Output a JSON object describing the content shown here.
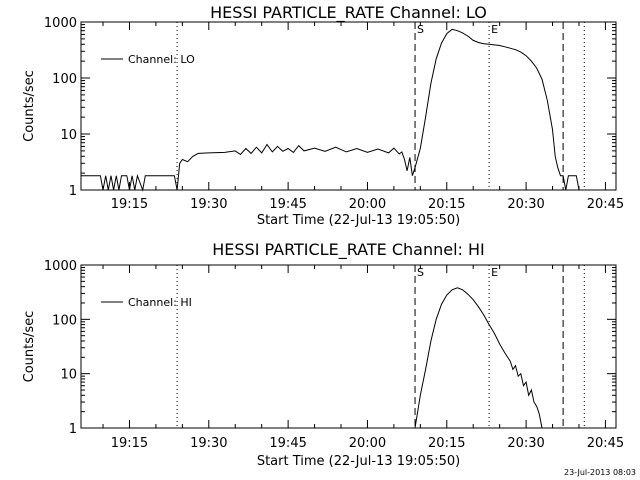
{
  "chart_data": [
    {
      "type": "line",
      "title": "HESSI PARTICLE_RATE Channel: LO",
      "xlabel": "Start Time (22-Jul-13 19:05:50)",
      "ylabel": "Counts/sec",
      "yscale": "log",
      "ylim": [
        1,
        1000
      ],
      "xlim": [
        "19:05:50",
        "20:47:00"
      ],
      "x_tick_labels": [
        "19:15",
        "19:30",
        "19:45",
        "20:00",
        "20:15",
        "20:30",
        "20:45"
      ],
      "y_tick_labels": [
        "1",
        "10",
        "100",
        "1000"
      ],
      "legend": {
        "position": "top-left",
        "entries": [
          "Channel: LO"
        ]
      },
      "markers": [
        {
          "label": "",
          "time": "19:24:00",
          "style": "dotted"
        },
        {
          "label": "S",
          "time": "20:09:00",
          "style": "dashed"
        },
        {
          "label": "E",
          "time": "20:23:00",
          "style": "dotted"
        },
        {
          "label": "",
          "time": "20:37:00",
          "style": "dashed"
        },
        {
          "label": "",
          "time": "20:41:00",
          "style": "dotted"
        }
      ],
      "series": [
        {
          "name": "Channel: LO",
          "points": [
            [
              "19:05:50",
              1.8
            ],
            [
              "19:08:00",
              1.8
            ],
            [
              "19:09:30",
              1.8
            ],
            [
              "19:10:00",
              1.0
            ],
            [
              "19:10:30",
              1.8
            ],
            [
              "19:11:00",
              1.0
            ],
            [
              "19:11:30",
              1.8
            ],
            [
              "19:12:00",
              1.0
            ],
            [
              "19:12:30",
              1.8
            ],
            [
              "19:13:00",
              1.0
            ],
            [
              "19:13:30",
              1.8
            ],
            [
              "19:14:30",
              1.8
            ],
            [
              "19:15:00",
              1.0
            ],
            [
              "19:15:30",
              1.8
            ],
            [
              "19:16:00",
              1.0
            ],
            [
              "19:16:30",
              1.8
            ],
            [
              "19:17:30",
              1.0
            ],
            [
              "19:18:00",
              1.8
            ],
            [
              "19:23:30",
              1.8
            ],
            [
              "19:24:00",
              1.0
            ],
            [
              "19:24:30",
              3.0
            ],
            [
              "19:25:00",
              3.5
            ],
            [
              "19:26:00",
              3.2
            ],
            [
              "19:27:00",
              4.0
            ],
            [
              "19:28:00",
              4.5
            ],
            [
              "19:30:00",
              4.6
            ],
            [
              "19:33:00",
              4.7
            ],
            [
              "19:35:00",
              5.0
            ],
            [
              "19:36:00",
              4.3
            ],
            [
              "19:37:00",
              5.5
            ],
            [
              "19:38:00",
              4.5
            ],
            [
              "19:39:00",
              5.8
            ],
            [
              "19:40:00",
              4.6
            ],
            [
              "19:41:00",
              6.5
            ],
            [
              "19:42:00",
              4.8
            ],
            [
              "19:43:00",
              6.0
            ],
            [
              "19:44:00",
              4.9
            ],
            [
              "19:45:00",
              5.5
            ],
            [
              "19:46:00",
              4.7
            ],
            [
              "19:47:00",
              6.2
            ],
            [
              "19:48:00",
              5.0
            ],
            [
              "19:50:00",
              5.6
            ],
            [
              "19:52:00",
              4.9
            ],
            [
              "19:54:00",
              5.8
            ],
            [
              "19:56:00",
              4.8
            ],
            [
              "19:58:00",
              5.5
            ],
            [
              "20:00:00",
              4.7
            ],
            [
              "20:02:00",
              5.4
            ],
            [
              "20:04:00",
              4.6
            ],
            [
              "20:05:00",
              5.6
            ],
            [
              "20:06:00",
              4.4
            ],
            [
              "20:06:30",
              4.8
            ],
            [
              "20:07:00",
              3.5
            ],
            [
              "20:07:30",
              2.2
            ],
            [
              "20:08:00",
              3.8
            ],
            [
              "20:08:30",
              1.8
            ],
            [
              "20:09:00",
              2.5
            ],
            [
              "20:10:00",
              5.5
            ],
            [
              "20:11:00",
              20
            ],
            [
              "20:12:00",
              80
            ],
            [
              "20:13:00",
              220
            ],
            [
              "20:14:00",
              420
            ],
            [
              "20:15:00",
              620
            ],
            [
              "20:16:00",
              740
            ],
            [
              "20:17:00",
              700
            ],
            [
              "20:18:00",
              640
            ],
            [
              "20:19:00",
              560
            ],
            [
              "20:20:00",
              470
            ],
            [
              "20:21:00",
              430
            ],
            [
              "20:22:00",
              410
            ],
            [
              "20:23:00",
              400
            ],
            [
              "20:24:00",
              390
            ],
            [
              "20:25:00",
              380
            ],
            [
              "20:26:00",
              360
            ],
            [
              "20:27:00",
              340
            ],
            [
              "20:28:00",
              320
            ],
            [
              "20:29:00",
              290
            ],
            [
              "20:30:00",
              250
            ],
            [
              "20:31:00",
              200
            ],
            [
              "20:32:00",
              150
            ],
            [
              "20:33:00",
              95
            ],
            [
              "20:34:00",
              40
            ],
            [
              "20:35:00",
              12
            ],
            [
              "20:35:30",
              4
            ],
            [
              "20:36:00",
              2.5
            ],
            [
              "20:36:30",
              1.8
            ],
            [
              "20:37:00",
              1.8
            ],
            [
              "20:37:30",
              1.0
            ],
            [
              "20:38:00",
              1.8
            ],
            [
              "20:39:30",
              1.8
            ],
            [
              "20:40:00",
              1.0
            ],
            [
              "20:41:00",
              1.0
            ]
          ]
        }
      ]
    },
    {
      "type": "line",
      "title": "HESSI PARTICLE_RATE Channel: HI",
      "xlabel": "Start Time (22-Jul-13 19:05:50)",
      "ylabel": "Counts/sec",
      "yscale": "log",
      "ylim": [
        1,
        1000
      ],
      "xlim": [
        "19:05:50",
        "20:47:00"
      ],
      "x_tick_labels": [
        "19:15",
        "19:30",
        "19:45",
        "20:00",
        "20:15",
        "20:30",
        "20:45"
      ],
      "y_tick_labels": [
        "1",
        "10",
        "100",
        "1000"
      ],
      "legend": {
        "position": "top-left",
        "entries": [
          "Channel: HI"
        ]
      },
      "markers": [
        {
          "label": "",
          "time": "19:24:00",
          "style": "dotted"
        },
        {
          "label": "S",
          "time": "20:09:00",
          "style": "dashed"
        },
        {
          "label": "E",
          "time": "20:23:00",
          "style": "dotted"
        },
        {
          "label": "",
          "time": "20:37:00",
          "style": "dashed"
        },
        {
          "label": "",
          "time": "20:41:00",
          "style": "dotted"
        }
      ],
      "series": [
        {
          "name": "Channel: HI",
          "points": [
            [
              "20:09:00",
              1.0
            ],
            [
              "20:09:30",
              2.0
            ],
            [
              "20:10:00",
              4
            ],
            [
              "20:11:00",
              12
            ],
            [
              "20:12:00",
              40
            ],
            [
              "20:13:00",
              100
            ],
            [
              "20:14:00",
              190
            ],
            [
              "20:15:00",
              280
            ],
            [
              "20:16:00",
              350
            ],
            [
              "20:17:00",
              380
            ],
            [
              "20:18:00",
              350
            ],
            [
              "20:19:00",
              290
            ],
            [
              "20:20:00",
              230
            ],
            [
              "20:21:00",
              170
            ],
            [
              "20:22:00",
              120
            ],
            [
              "20:23:00",
              80
            ],
            [
              "20:24:00",
              55
            ],
            [
              "20:25:00",
              35
            ],
            [
              "20:26:00",
              24
            ],
            [
              "20:27:00",
              17
            ],
            [
              "20:27:30",
              12
            ],
            [
              "20:28:00",
              14
            ],
            [
              "20:28:30",
              9
            ],
            [
              "20:29:00",
              10
            ],
            [
              "20:29:30",
              6
            ],
            [
              "20:30:00",
              7
            ],
            [
              "20:30:30",
              4
            ],
            [
              "20:31:00",
              5
            ],
            [
              "20:31:30",
              3
            ],
            [
              "20:32:00",
              2.5
            ],
            [
              "20:32:30",
              1.8
            ],
            [
              "20:33:00",
              1.0
            ]
          ]
        }
      ]
    }
  ],
  "footer": {
    "timestamp": "23-Jul-2013 08:03"
  }
}
